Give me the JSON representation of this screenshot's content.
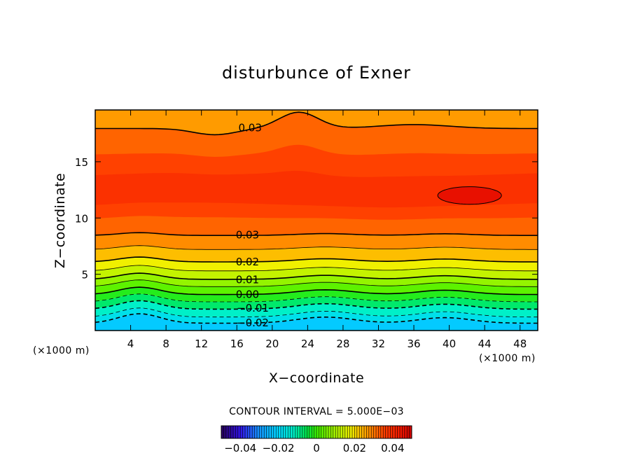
{
  "chart_data": {
    "type": "heatmap",
    "title": "disturbunce of Exner",
    "xlabel": "X−coordinate",
    "ylabel": "Z−coordinate",
    "x_unit_left": "(×1000 m)",
    "x_unit_right": "(×1000 m)",
    "xlim": [
      0,
      50
    ],
    "ylim": [
      0,
      19.6
    ],
    "x_ticks": [
      4,
      8,
      12,
      16,
      20,
      24,
      28,
      32,
      36,
      40,
      44,
      48
    ],
    "x_tick_labels": [
      "4",
      "8",
      "12",
      "16",
      "20",
      "24",
      "28",
      "32",
      "36",
      "40",
      "44",
      "48"
    ],
    "y_ticks": [
      5,
      10,
      15
    ],
    "y_tick_labels": [
      "5",
      "10",
      "15"
    ],
    "contour_interval_text": "CONTOUR INTERVAL = 5.000E−03",
    "contour_interval": 0.005,
    "contour_labels": [
      {
        "text": "0.03",
        "x": 17.5,
        "z": 18.0
      },
      {
        "text": "0.03",
        "x": 17.2,
        "z": 8.5
      },
      {
        "text": "0.02",
        "x": 17.2,
        "z": 6.1
      },
      {
        "text": "0.01",
        "x": 17.2,
        "z": 4.5
      },
      {
        "text": "0.00",
        "x": 17.2,
        "z": 3.2
      },
      {
        "text": "−0.01",
        "x": 17.8,
        "z": 2.0
      },
      {
        "text": "−0.02",
        "x": 17.8,
        "z": 0.7
      }
    ],
    "colorbar": {
      "min": -0.05,
      "max": 0.05,
      "tick_values": [
        -0.04,
        -0.02,
        0,
        0.02,
        0.04
      ],
      "tick_labels": [
        "−0.04",
        "−0.02",
        "0",
        "0.02",
        "0.04"
      ]
    }
  }
}
